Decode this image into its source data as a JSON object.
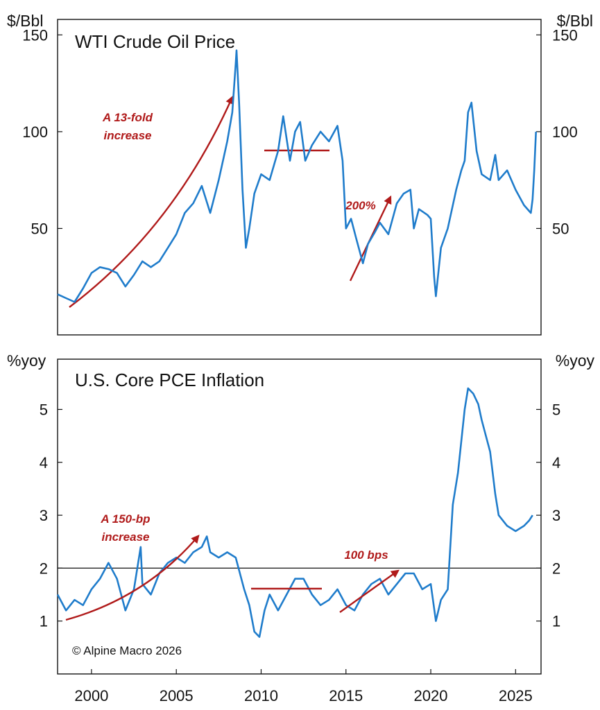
{
  "colors": {
    "series": "#1f7ccb",
    "annotation": "#b01a1a",
    "axis": "#111111"
  },
  "copyright": "© Alpine Macro 2026",
  "chart_data": [
    {
      "type": "line",
      "title": "WTI Crude Oil Price",
      "ylabel_left": "$/Bbl",
      "ylabel_right": "$/Bbl",
      "ylim": [
        -5,
        158
      ],
      "yticks": [
        50,
        100,
        150
      ],
      "xlim": [
        1998.0,
        2026.5
      ],
      "series": [
        {
          "name": "WTI Crude Oil Price",
          "points": [
            [
              1998.0,
              16
            ],
            [
              1998.5,
              14
            ],
            [
              1999.0,
              12
            ],
            [
              1999.5,
              19
            ],
            [
              2000.0,
              27
            ],
            [
              2000.5,
              30
            ],
            [
              2001.0,
              29
            ],
            [
              2001.5,
              27
            ],
            [
              2002.0,
              20
            ],
            [
              2002.5,
              26
            ],
            [
              2003.0,
              33
            ],
            [
              2003.5,
              30
            ],
            [
              2004.0,
              33
            ],
            [
              2004.5,
              40
            ],
            [
              2005.0,
              47
            ],
            [
              2005.5,
              58
            ],
            [
              2006.0,
              63
            ],
            [
              2006.5,
              72
            ],
            [
              2007.0,
              58
            ],
            [
              2007.5,
              75
            ],
            [
              2008.0,
              95
            ],
            [
              2008.3,
              110
            ],
            [
              2008.5,
              135
            ],
            [
              2008.55,
              142
            ],
            [
              2008.7,
              115
            ],
            [
              2008.9,
              70
            ],
            [
              2009.1,
              40
            ],
            [
              2009.3,
              50
            ],
            [
              2009.6,
              68
            ],
            [
              2010.0,
              78
            ],
            [
              2010.5,
              75
            ],
            [
              2011.0,
              90
            ],
            [
              2011.3,
              108
            ],
            [
              2011.7,
              85
            ],
            [
              2012.0,
              100
            ],
            [
              2012.3,
              105
            ],
            [
              2012.6,
              85
            ],
            [
              2013.0,
              93
            ],
            [
              2013.5,
              100
            ],
            [
              2014.0,
              95
            ],
            [
              2014.5,
              103
            ],
            [
              2014.8,
              85
            ],
            [
              2015.0,
              50
            ],
            [
              2015.3,
              55
            ],
            [
              2015.6,
              45
            ],
            [
              2016.0,
              32
            ],
            [
              2016.3,
              42
            ],
            [
              2016.7,
              48
            ],
            [
              2017.0,
              53
            ],
            [
              2017.5,
              47
            ],
            [
              2018.0,
              63
            ],
            [
              2018.4,
              68
            ],
            [
              2018.8,
              70
            ],
            [
              2019.0,
              50
            ],
            [
              2019.3,
              60
            ],
            [
              2019.8,
              57
            ],
            [
              2020.0,
              55
            ],
            [
              2020.2,
              25
            ],
            [
              2020.3,
              15
            ],
            [
              2020.6,
              40
            ],
            [
              2021.0,
              50
            ],
            [
              2021.5,
              70
            ],
            [
              2021.8,
              80
            ],
            [
              2022.0,
              85
            ],
            [
              2022.2,
              110
            ],
            [
              2022.4,
              115
            ],
            [
              2022.7,
              90
            ],
            [
              2023.0,
              78
            ],
            [
              2023.5,
              75
            ],
            [
              2023.8,
              88
            ],
            [
              2024.0,
              75
            ],
            [
              2024.5,
              80
            ],
            [
              2025.0,
              70
            ],
            [
              2025.5,
              62
            ],
            [
              2025.9,
              58
            ],
            [
              2026.0,
              65
            ],
            [
              2026.1,
              80
            ],
            [
              2026.2,
              100
            ]
          ]
        }
      ],
      "annotations": [
        {
          "label_lines": [
            "A 13-fold",
            "increase"
          ]
        },
        {
          "label_lines": [
            "200%"
          ]
        }
      ]
    },
    {
      "type": "line",
      "title": "U.S. Core PCE Inflation",
      "ylabel_left": "%yoy",
      "ylabel_right": "%yoy",
      "ylim": [
        0.0,
        5.95
      ],
      "yticks": [
        1,
        2,
        3,
        4,
        5
      ],
      "xlim": [
        1998.0,
        2026.5
      ],
      "reference_line": 2,
      "xticks": [
        2000,
        2005,
        2010,
        2015,
        2020,
        2025
      ],
      "series": [
        {
          "name": "U.S. Core PCE Inflation",
          "points": [
            [
              1998.0,
              1.5
            ],
            [
              1998.5,
              1.2
            ],
            [
              1999.0,
              1.4
            ],
            [
              1999.5,
              1.3
            ],
            [
              2000.0,
              1.6
            ],
            [
              2000.5,
              1.8
            ],
            [
              2001.0,
              2.1
            ],
            [
              2001.5,
              1.8
            ],
            [
              2002.0,
              1.2
            ],
            [
              2002.5,
              1.6
            ],
            [
              2002.9,
              2.4
            ],
            [
              2003.0,
              1.7
            ],
            [
              2003.5,
              1.5
            ],
            [
              2004.0,
              1.9
            ],
            [
              2004.5,
              2.1
            ],
            [
              2005.0,
              2.2
            ],
            [
              2005.5,
              2.1
            ],
            [
              2006.0,
              2.3
            ],
            [
              2006.5,
              2.4
            ],
            [
              2006.8,
              2.6
            ],
            [
              2007.0,
              2.3
            ],
            [
              2007.5,
              2.2
            ],
            [
              2008.0,
              2.3
            ],
            [
              2008.5,
              2.2
            ],
            [
              2009.0,
              1.6
            ],
            [
              2009.3,
              1.3
            ],
            [
              2009.6,
              0.8
            ],
            [
              2009.9,
              0.7
            ],
            [
              2010.2,
              1.2
            ],
            [
              2010.5,
              1.5
            ],
            [
              2011.0,
              1.2
            ],
            [
              2011.5,
              1.5
            ],
            [
              2012.0,
              1.8
            ],
            [
              2012.5,
              1.8
            ],
            [
              2013.0,
              1.5
            ],
            [
              2013.5,
              1.3
            ],
            [
              2014.0,
              1.4
            ],
            [
              2014.5,
              1.6
            ],
            [
              2015.0,
              1.3
            ],
            [
              2015.5,
              1.2
            ],
            [
              2016.0,
              1.5
            ],
            [
              2016.5,
              1.7
            ],
            [
              2017.0,
              1.8
            ],
            [
              2017.5,
              1.5
            ],
            [
              2018.0,
              1.7
            ],
            [
              2018.5,
              1.9
            ],
            [
              2019.0,
              1.9
            ],
            [
              2019.5,
              1.6
            ],
            [
              2020.0,
              1.7
            ],
            [
              2020.3,
              1.0
            ],
            [
              2020.6,
              1.4
            ],
            [
              2021.0,
              1.6
            ],
            [
              2021.3,
              3.2
            ],
            [
              2021.6,
              3.8
            ],
            [
              2022.0,
              5.0
            ],
            [
              2022.2,
              5.4
            ],
            [
              2022.5,
              5.3
            ],
            [
              2022.8,
              5.1
            ],
            [
              2023.0,
              4.8
            ],
            [
              2023.5,
              4.2
            ],
            [
              2023.8,
              3.4
            ],
            [
              2024.0,
              3.0
            ],
            [
              2024.5,
              2.8
            ],
            [
              2025.0,
              2.7
            ],
            [
              2025.5,
              2.8
            ],
            [
              2025.8,
              2.9
            ],
            [
              2026.0,
              3.0
            ]
          ]
        }
      ],
      "annotations": [
        {
          "label_lines": [
            "A 150-bp",
            "increase"
          ]
        },
        {
          "label_lines": [
            "100 bps"
          ]
        }
      ]
    }
  ]
}
